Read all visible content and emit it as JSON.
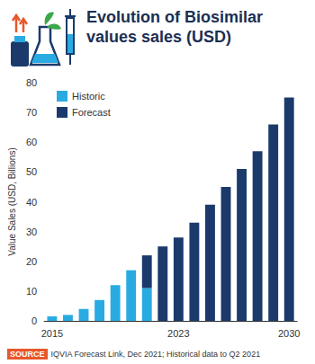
{
  "chart_data": {
    "type": "bar",
    "title": "Evolution of Biosimilar values sales (USD)",
    "y_label": "Value Sales (USD, Billions)",
    "categories": [
      "2015",
      null,
      null,
      null,
      null,
      null,
      null,
      null,
      "2023",
      null,
      null,
      null,
      null,
      null,
      null,
      "2030"
    ],
    "series": [
      {
        "name": "Historic",
        "color": "#29abe2",
        "values": [
          1.5,
          2,
          4,
          7,
          12,
          17,
          11,
          null,
          null,
          null,
          null,
          null,
          null,
          null,
          null,
          null
        ]
      },
      {
        "name": "Forecast",
        "color": "#1b3a6b",
        "values": [
          null,
          null,
          null,
          null,
          null,
          null,
          11,
          25,
          28,
          33,
          39,
          45,
          51,
          57,
          66,
          75
        ]
      }
    ],
    "stacked": true,
    "ylim": [
      0,
      80
    ],
    "yticks": [
      0,
      10,
      20,
      30,
      40,
      50,
      60,
      70,
      80
    ],
    "grid": false,
    "legend": "top-left",
    "source_label": "SOURCE",
    "source": "IQVIA Forecast Link, Dec 2021; Historical data to Q2 2021"
  }
}
